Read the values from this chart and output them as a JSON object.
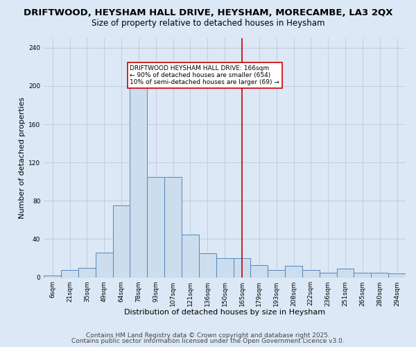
{
  "title_line1": "DRIFTWOOD, HEYSHAM HALL DRIVE, HEYSHAM, MORECAMBE, LA3 2QX",
  "title_line2": "Size of property relative to detached houses in Heysham",
  "xlabel": "Distribution of detached houses by size in Heysham",
  "ylabel": "Number of detached properties",
  "categories": [
    "6sqm",
    "21sqm",
    "35sqm",
    "49sqm",
    "64sqm",
    "78sqm",
    "93sqm",
    "107sqm",
    "121sqm",
    "136sqm",
    "150sqm",
    "165sqm",
    "179sqm",
    "193sqm",
    "208sqm",
    "222sqm",
    "236sqm",
    "251sqm",
    "265sqm",
    "280sqm",
    "294sqm"
  ],
  "values": [
    2,
    8,
    10,
    26,
    75,
    200,
    105,
    105,
    45,
    25,
    20,
    20,
    13,
    8,
    12,
    8,
    5,
    9,
    5,
    5,
    4
  ],
  "bar_color": "#ccdded",
  "bar_edge_color": "#5588bb",
  "vline_color": "#cc0000",
  "vline_index": 11,
  "annotation_text": "DRIFTWOOD HEYSHAM HALL DRIVE: 166sqm\n← 90% of detached houses are smaller (654)\n10% of semi-detached houses are larger (69) →",
  "annotation_box_edgecolor": "#cc0000",
  "annotation_box_facecolor": "#ffffff",
  "ylim": [
    0,
    250
  ],
  "yticks": [
    0,
    40,
    80,
    120,
    160,
    200,
    240
  ],
  "bg_color": "#dce8f5",
  "title_fontsize": 9.5,
  "subtitle_fontsize": 8.5,
  "axis_label_fontsize": 8,
  "tick_fontsize": 6.5,
  "annotation_fontsize": 6.5,
  "footer_fontsize": 6.5,
  "footer_line1": "Contains HM Land Registry data © Crown copyright and database right 2025.",
  "footer_line2": "Contains public sector information licensed under the Open Government Licence v3.0."
}
